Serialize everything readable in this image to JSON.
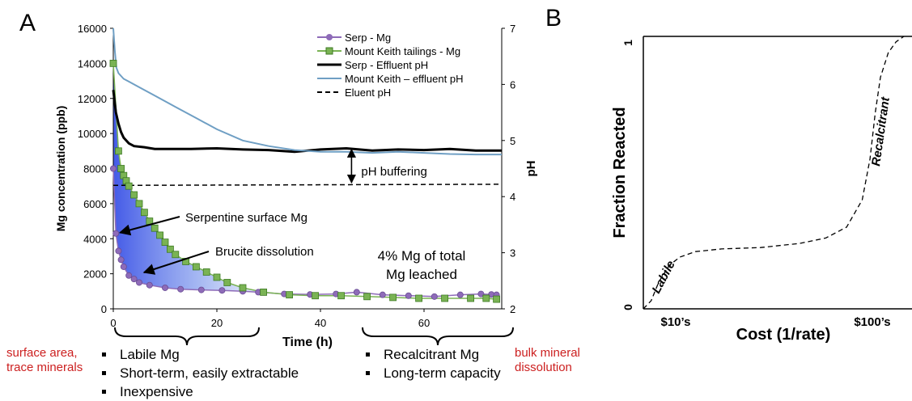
{
  "panels": {
    "a": "A",
    "b": "B"
  },
  "chart_data": [
    {
      "type": "line",
      "xlabel": "Time (h)",
      "ylabel": "Mg concentration (ppb)",
      "y2label": "pH",
      "xlim": [
        0,
        75
      ],
      "ylim": [
        0,
        16000
      ],
      "y2lim": [
        2,
        7
      ],
      "x_ticks": [
        "0",
        "20",
        "40",
        "60"
      ],
      "y_ticks": [
        "0",
        "2000",
        "4000",
        "6000",
        "8000",
        "10000",
        "12000",
        "14000",
        "16000"
      ],
      "y2_ticks": [
        "2",
        "3",
        "4",
        "5",
        "6",
        "7"
      ],
      "legend_position": "top-right",
      "series": [
        {
          "name": "Serp - Mg",
          "axis": "left",
          "marker": "circle",
          "color": "#8e6bb8",
          "x": [
            0,
            0.5,
            1,
            1.5,
            2,
            3,
            4,
            5,
            7,
            10,
            13,
            17,
            21,
            25,
            28,
            33,
            38,
            43,
            47,
            52,
            57,
            62,
            67,
            71,
            73,
            74
          ],
          "y": [
            8000,
            4300,
            3300,
            2800,
            2400,
            1900,
            1700,
            1500,
            1350,
            1200,
            1120,
            1080,
            1050,
            1000,
            950,
            850,
            820,
            850,
            950,
            800,
            750,
            700,
            800,
            850,
            820,
            800
          ]
        },
        {
          "name": "Mount Keith tailings - Mg",
          "axis": "left",
          "marker": "square",
          "color": "#7ab354",
          "x": [
            0,
            1,
            1.5,
            2,
            2.5,
            3,
            4,
            5,
            6,
            7,
            8,
            9,
            10,
            11,
            12,
            14,
            16,
            18,
            20,
            22,
            25,
            29,
            34,
            39,
            44,
            49,
            54,
            59,
            64,
            69,
            72,
            74
          ],
          "y": [
            14000,
            9000,
            8000,
            7600,
            7300,
            7000,
            6500,
            6000,
            5500,
            5000,
            4600,
            4200,
            3800,
            3400,
            3100,
            2700,
            2400,
            2100,
            1800,
            1500,
            1200,
            950,
            800,
            750,
            750,
            700,
            650,
            600,
            600,
            600,
            600,
            550
          ]
        },
        {
          "name": "Serp - Effluent pH",
          "axis": "right",
          "marker": "none",
          "color": "#000000",
          "x": [
            0,
            0.5,
            1,
            1.5,
            2,
            3,
            4,
            6,
            8,
            10,
            15,
            20,
            25,
            30,
            35,
            40,
            45,
            50,
            55,
            60,
            65,
            70,
            75
          ],
          "y": [
            5.9,
            5.5,
            5.3,
            5.15,
            5.05,
            4.95,
            4.9,
            4.88,
            4.85,
            4.85,
            4.85,
            4.86,
            4.84,
            4.83,
            4.8,
            4.84,
            4.86,
            4.82,
            4.84,
            4.83,
            4.85,
            4.82,
            4.82
          ]
        },
        {
          "name": "Mount Keith – effluent pH",
          "axis": "right",
          "marker": "none",
          "color": "#6f9fc4",
          "x": [
            0,
            0.3,
            0.6,
            1,
            2,
            3,
            5,
            8,
            12,
            16,
            20,
            25,
            30,
            35,
            40,
            45,
            50,
            55,
            60,
            65,
            70,
            75
          ],
          "y": [
            7.0,
            6.6,
            6.3,
            6.2,
            6.1,
            6.05,
            5.95,
            5.8,
            5.6,
            5.4,
            5.2,
            5.0,
            4.9,
            4.83,
            4.8,
            4.8,
            4.78,
            4.8,
            4.78,
            4.76,
            4.75,
            4.75
          ]
        },
        {
          "name": "Eluent pH",
          "axis": "right",
          "marker": "none",
          "dash": true,
          "color": "#000000",
          "x": [
            0,
            75
          ],
          "y": [
            4.2,
            4.22
          ]
        }
      ],
      "annotations": [
        "pH buffering",
        "Serpentine surface Mg",
        "Brucite dissolution",
        "4% Mg of total",
        "Mg leached"
      ]
    },
    {
      "type": "line",
      "xlabel": "Cost (1/rate)",
      "ylabel": "Fraction Reacted",
      "y_ticks": [
        "0",
        "1"
      ],
      "x_ticks": [
        "$10’s",
        "$100’s"
      ],
      "annotations": [
        "Labile",
        "Recalcitrant"
      ],
      "series": [
        {
          "dash": true,
          "color": "#000000",
          "x": [
            0,
            0.03,
            0.06,
            0.1,
            0.14,
            0.2,
            0.3,
            0.45,
            0.6,
            0.7,
            0.78,
            0.84,
            0.87,
            0.89,
            0.91,
            0.94,
            0.97,
            1.0
          ],
          "y": [
            0,
            0.03,
            0.1,
            0.16,
            0.19,
            0.21,
            0.22,
            0.225,
            0.24,
            0.26,
            0.3,
            0.4,
            0.55,
            0.72,
            0.85,
            0.94,
            0.98,
            1.0
          ]
        }
      ]
    }
  ],
  "below": {
    "left_red": [
      "surface area,",
      "trace minerals"
    ],
    "left_bullets": [
      "Labile Mg",
      "Short-term, easily extractable",
      "Inexpensive"
    ],
    "right_bullets": [
      "Recalcitrant Mg",
      "Long-term capacity"
    ],
    "right_red": [
      "bulk mineral",
      "dissolution"
    ]
  }
}
